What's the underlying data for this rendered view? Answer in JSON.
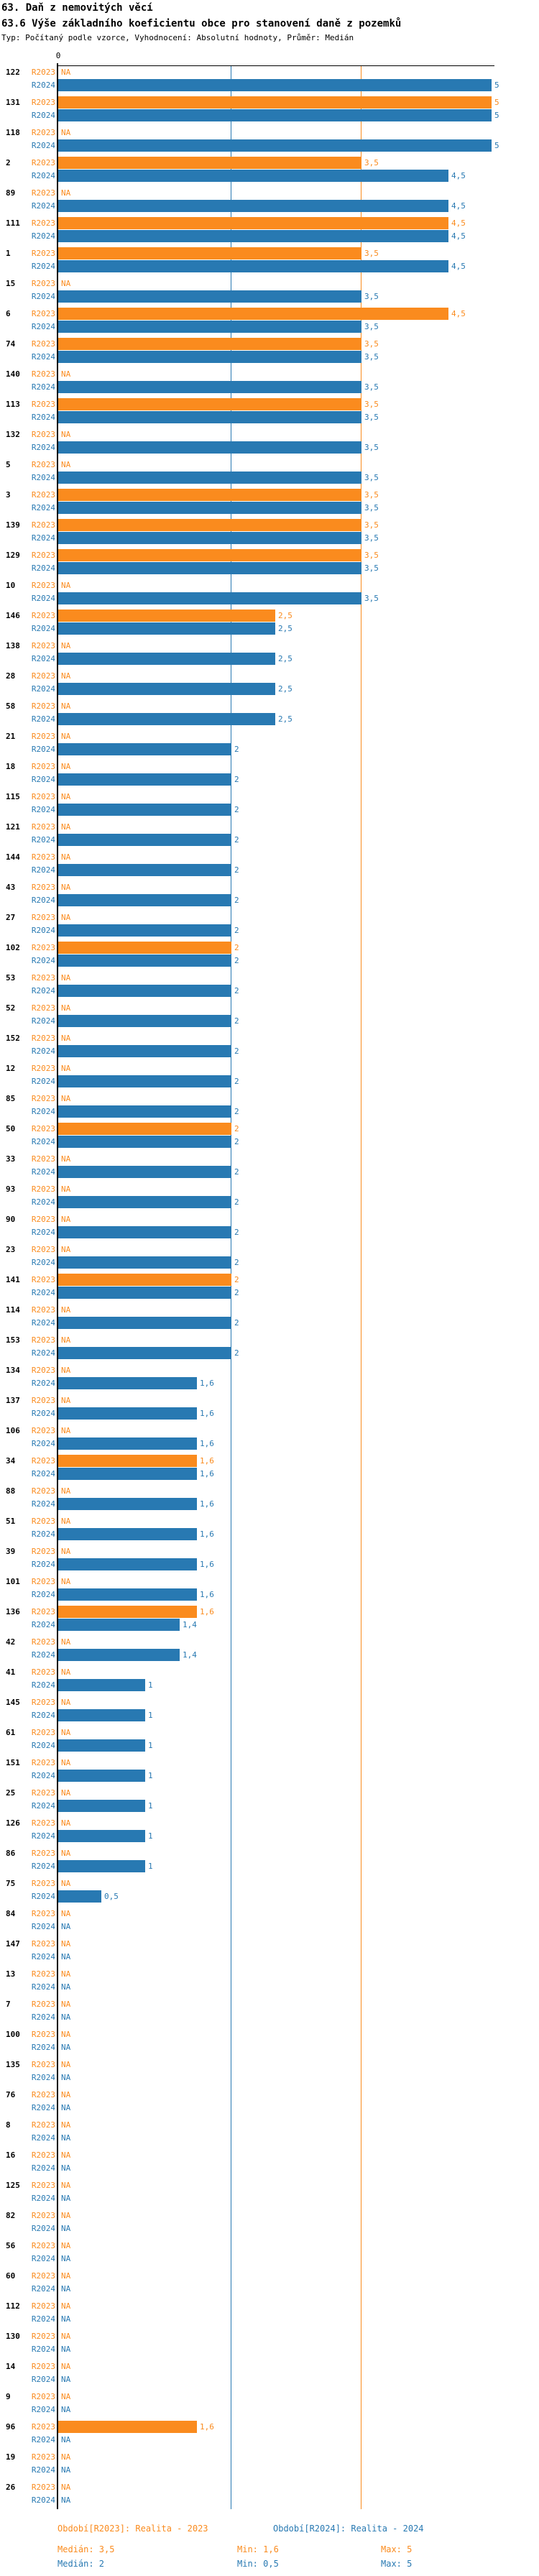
{
  "header": {
    "title": "63. Daň z nemovitých věcí",
    "subtitle": "63.6 Výše základního koeficientu obce pro stanovení daně z pozemků",
    "meta": "Typ: Počítaný podle vzorce, Vyhodnocení: Absolutní hodnoty, Průměr: Medián"
  },
  "colors": {
    "r2023": "#FA8B1E",
    "r2024": "#2879B2",
    "axis": "#000000"
  },
  "axis": {
    "zero_tick_label": "0",
    "x_min": 0,
    "x_max": 5
  },
  "chart_data": {
    "type": "bar",
    "orientation": "horizontal",
    "x_range": [
      0,
      5
    ],
    "grid": false,
    "decimal_separator": ",",
    "na_label": "NA",
    "series_labels": {
      "r2023": "R2023",
      "r2024": "R2024"
    },
    "guides": [
      {
        "name": "median-r2024",
        "value": 2,
        "color": "#2879B2"
      },
      {
        "name": "median-r2023",
        "value": 3.5,
        "color": "#FA8B1E"
      }
    ],
    "categories": [
      "122",
      "131",
      "118",
      "2",
      "89",
      "111",
      "1",
      "15",
      "6",
      "74",
      "140",
      "113",
      "132",
      "5",
      "3",
      "139",
      "129",
      "10",
      "146",
      "138",
      "28",
      "58",
      "21",
      "18",
      "115",
      "121",
      "144",
      "43",
      "27",
      "102",
      "53",
      "52",
      "152",
      "12",
      "85",
      "50",
      "33",
      "93",
      "90",
      "23",
      "141",
      "114",
      "153",
      "134",
      "137",
      "106",
      "34",
      "88",
      "51",
      "39",
      "101",
      "136",
      "42",
      "41",
      "145",
      "61",
      "151",
      "25",
      "126",
      "86",
      "75",
      "84",
      "147",
      "13",
      "7",
      "100",
      "135",
      "76",
      "8",
      "16",
      "125",
      "82",
      "56",
      "60",
      "112",
      "130",
      "14",
      "9",
      "96",
      "19",
      "26"
    ],
    "series": [
      {
        "name": "R2023",
        "values": [
          null,
          5,
          null,
          3.5,
          null,
          4.5,
          3.5,
          null,
          4.5,
          3.5,
          null,
          3.5,
          null,
          null,
          3.5,
          3.5,
          3.5,
          null,
          2.5,
          null,
          null,
          null,
          null,
          null,
          null,
          null,
          null,
          null,
          null,
          2,
          null,
          null,
          null,
          null,
          null,
          2,
          null,
          null,
          null,
          null,
          2,
          null,
          null,
          null,
          null,
          null,
          1.6,
          null,
          null,
          null,
          null,
          1.6,
          null,
          null,
          null,
          null,
          null,
          null,
          null,
          null,
          null,
          null,
          null,
          null,
          null,
          null,
          null,
          null,
          null,
          null,
          null,
          null,
          null,
          null,
          null,
          null,
          null,
          null,
          1.6,
          null,
          null
        ]
      },
      {
        "name": "R2024",
        "values": [
          5,
          5,
          5,
          4.5,
          4.5,
          4.5,
          4.5,
          3.5,
          3.5,
          3.5,
          3.5,
          3.5,
          3.5,
          3.5,
          3.5,
          3.5,
          3.5,
          3.5,
          2.5,
          2.5,
          2.5,
          2.5,
          2,
          2,
          2,
          2,
          2,
          2,
          2,
          2,
          2,
          2,
          2,
          2,
          2,
          2,
          2,
          2,
          2,
          2,
          2,
          2,
          2,
          1.6,
          1.6,
          1.6,
          1.6,
          1.6,
          1.6,
          1.6,
          1.6,
          1.4,
          1.4,
          1,
          1,
          1,
          1,
          1,
          1,
          1,
          0.5,
          null,
          null,
          null,
          null,
          null,
          null,
          null,
          null,
          null,
          null,
          null,
          null,
          null,
          null,
          null,
          null,
          null,
          null,
          null,
          null
        ]
      }
    ],
    "stats": {
      "r2023": {
        "median": 3.5,
        "min": 1.6,
        "max": 5
      },
      "r2024": {
        "median": 2,
        "min": 0.5,
        "max": 5
      }
    }
  },
  "legend": {
    "r2023": {
      "header": "Období[R2023]: Realita - 2023",
      "median_label": "Medián: 3,5",
      "min_label": "Min: 1,6",
      "max_label": "Max: 5"
    },
    "r2024": {
      "header": "Období[R2024]: Realita - 2024",
      "median_label": "Medián: 2",
      "min_label": "Min: 0,5",
      "max_label": "Max: 5"
    }
  }
}
